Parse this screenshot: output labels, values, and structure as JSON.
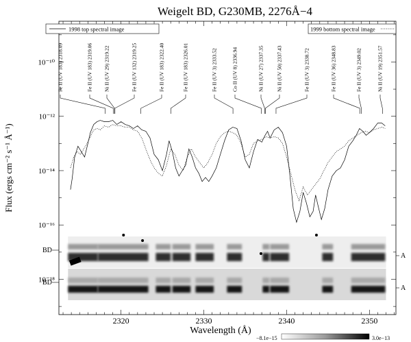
{
  "chart_data": {
    "type": "line",
    "title": "Weigelt BD, G230MB, 2276Å−4",
    "xlabel": "Wavelength (Å)",
    "ylabel": "Flux (ergs cm⁻² s⁻¹ Å⁻¹)",
    "xlim": [
      2312.5,
      2353.2
    ],
    "ylim_log10": [
      -19.3,
      -8.5
    ],
    "log_y": true,
    "x_ticks": [
      2320,
      2330,
      2340,
      2350
    ],
    "y_ticks": [
      {
        "value": -10,
        "label": "10⁻¹⁰"
      },
      {
        "value": -12,
        "label": "10⁻¹²"
      },
      {
        "value": -14,
        "label": "10⁻¹⁴"
      },
      {
        "value": -16,
        "label": "10⁻¹⁶"
      },
      {
        "value": -18,
        "label": "10⁻¹⁸"
      }
    ],
    "legend": [
      {
        "label": "1998 top spectral image",
        "style": "solid",
        "placement": "top-left"
      },
      {
        "label": "1999 bottom spectral image",
        "style": "dotted",
        "placement": "top-right"
      }
    ],
    "series": [
      {
        "name": "1998 top spectral image",
        "style": "solid",
        "x": [
          2313.9,
          2314.1,
          2314.4,
          2314.8,
          2315.2,
          2315.6,
          2316.0,
          2316.3,
          2316.7,
          2317.1,
          2317.5,
          2318.0,
          2318.5,
          2319.0,
          2319.5,
          2320.0,
          2320.5,
          2321.0,
          2321.5,
          2322.0,
          2322.5,
          2323.0,
          2323.5,
          2324.0,
          2324.5,
          2325.0,
          2325.5,
          2325.8,
          2326.2,
          2326.6,
          2327.0,
          2327.4,
          2327.8,
          2328.2,
          2328.6,
          2329.0,
          2329.4,
          2329.8,
          2330.2,
          2330.6,
          2331.0,
          2331.5,
          2332.0,
          2332.5,
          2333.0,
          2333.5,
          2334.0,
          2334.5,
          2335.0,
          2335.5,
          2336.0,
          2336.5,
          2337.0,
          2337.4,
          2337.7,
          2338.0,
          2338.5,
          2339.0,
          2339.5,
          2340.0,
          2340.4,
          2340.8,
          2341.2,
          2341.6,
          2342.0,
          2342.4,
          2342.8,
          2343.2,
          2343.5,
          2343.8,
          2344.2,
          2344.6,
          2345.0,
          2345.5,
          2346.0,
          2346.5,
          2347.0,
          2347.5,
          2348.0,
          2348.4,
          2348.8,
          2349.2,
          2349.6,
          2350.0,
          2350.5,
          2351.0,
          2351.5,
          2351.9
        ],
        "log10_flux": [
          -14.7,
          -14.3,
          -13.5,
          -13.1,
          -13.3,
          -13.5,
          -13.0,
          -12.6,
          -12.3,
          -12.2,
          -12.15,
          -12.2,
          -12.2,
          -12.15,
          -12.3,
          -12.2,
          -12.3,
          -12.35,
          -12.45,
          -12.35,
          -12.5,
          -12.55,
          -12.8,
          -13.4,
          -13.6,
          -14.0,
          -13.4,
          -12.9,
          -13.3,
          -13.9,
          -14.2,
          -14.0,
          -13.8,
          -13.2,
          -13.5,
          -13.9,
          -14.1,
          -14.4,
          -14.25,
          -14.4,
          -14.2,
          -13.9,
          -13.4,
          -12.9,
          -12.5,
          -12.4,
          -12.45,
          -12.9,
          -13.6,
          -13.9,
          -13.3,
          -12.85,
          -12.95,
          -12.7,
          -12.55,
          -12.8,
          -12.5,
          -12.4,
          -12.6,
          -13.1,
          -14.2,
          -15.4,
          -15.9,
          -15.5,
          -14.8,
          -15.2,
          -15.7,
          -15.5,
          -14.9,
          -15.3,
          -15.8,
          -15.4,
          -14.7,
          -14.2,
          -14.0,
          -13.9,
          -13.6,
          -13.1,
          -12.9,
          -12.7,
          -12.45,
          -12.55,
          -12.7,
          -12.6,
          -12.45,
          -12.25,
          -12.25,
          -12.35
        ]
      },
      {
        "name": "1999 bottom spectral image",
        "style": "dotted",
        "x": [
          2313.9,
          2314.3,
          2314.7,
          2315.1,
          2315.5,
          2315.9,
          2316.3,
          2316.7,
          2317.1,
          2317.5,
          2318.0,
          2318.5,
          2319.0,
          2319.5,
          2320.0,
          2320.5,
          2321.0,
          2321.5,
          2322.0,
          2322.5,
          2323.0,
          2323.5,
          2324.0,
          2324.5,
          2325.0,
          2325.5,
          2326.0,
          2326.5,
          2327.0,
          2327.5,
          2328.0,
          2328.5,
          2329.0,
          2329.5,
          2330.0,
          2330.5,
          2331.0,
          2331.5,
          2332.0,
          2332.5,
          2333.0,
          2333.5,
          2334.0,
          2334.5,
          2335.0,
          2335.5,
          2336.0,
          2336.5,
          2337.0,
          2337.5,
          2338.0,
          2338.5,
          2339.0,
          2339.5,
          2340.0,
          2340.5,
          2341.0,
          2341.5,
          2342.0,
          2342.5,
          2343.0,
          2343.5,
          2344.0,
          2344.5,
          2345.0,
          2345.5,
          2346.0,
          2346.5,
          2347.0,
          2347.5,
          2348.0,
          2348.5,
          2349.0,
          2349.5,
          2350.0,
          2350.5,
          2351.0,
          2351.5,
          2351.9
        ],
        "log10_flux": [
          -13.9,
          -13.5,
          -13.3,
          -13.4,
          -13.2,
          -13.0,
          -12.75,
          -12.5,
          -12.45,
          -12.5,
          -12.35,
          -12.4,
          -12.3,
          -12.35,
          -12.35,
          -12.4,
          -12.4,
          -12.5,
          -12.55,
          -12.8,
          -13.2,
          -13.6,
          -13.9,
          -14.1,
          -14.2,
          -13.8,
          -13.2,
          -13.4,
          -13.8,
          -14.0,
          -13.5,
          -13.2,
          -13.5,
          -13.7,
          -13.9,
          -13.7,
          -13.4,
          -13.0,
          -12.75,
          -12.6,
          -12.55,
          -12.6,
          -12.7,
          -13.0,
          -13.5,
          -13.4,
          -13.0,
          -12.9,
          -12.85,
          -12.75,
          -12.8,
          -12.75,
          -12.8,
          -13.0,
          -13.5,
          -14.1,
          -14.7,
          -15.1,
          -14.6,
          -14.9,
          -14.7,
          -14.5,
          -14.3,
          -14.0,
          -13.7,
          -13.5,
          -13.3,
          -13.2,
          -13.1,
          -12.9,
          -12.8,
          -12.7,
          -12.6,
          -12.55,
          -12.6,
          -12.5,
          -12.45,
          -12.4,
          -12.45
        ]
      }
    ],
    "line_ids": [
      {
        "label": "Fe II  (UV 183) 2318.09",
        "wavelength": 2318.09
      },
      {
        "label": "Fe II  (UV 183) 2319.06",
        "wavelength": 2319.06
      },
      {
        "label": "Ni II  (UV 29) 2319.22",
        "wavelength": 2319.22
      },
      {
        "label": "Fe II  (UV 132) 2319.25",
        "wavelength": 2319.25
      },
      {
        "label": "Fe II  (UV 183) 2322.40",
        "wavelength": 2322.4
      },
      {
        "label": "Fe II  (UV 183) 2326.01",
        "wavelength": 2326.01
      },
      {
        "label": "Fe II  (UV 3) 2333.52",
        "wavelength": 2333.52
      },
      {
        "label": "Co II  (UV 8) 2336.94",
        "wavelength": 2336.94
      },
      {
        "label": "Ni II  (UV 27) 2337.35",
        "wavelength": 2337.35
      },
      {
        "label": "Ni II  (UV 50) 2337.43",
        "wavelength": 2337.43
      },
      {
        "label": "Fe II  (UV 3) 2338.72",
        "wavelength": 2338.72
      },
      {
        "label": "Fe II  (UV 36) 2348.83",
        "wavelength": 2348.83
      },
      {
        "label": "Fe II  (UV 3) 2349.02",
        "wavelength": 2349.02
      },
      {
        "label": "Ni II  (UV 19) 2351.57",
        "wavelength": 2351.57
      }
    ],
    "spectral_images": {
      "row_labels_left": [
        "BD",
        "BD"
      ],
      "row_labels_right": [
        "A",
        "A"
      ],
      "colorbar_min_label": "−8.1e−15",
      "colorbar_max_label": "3.0e−13"
    },
    "grid": false
  }
}
